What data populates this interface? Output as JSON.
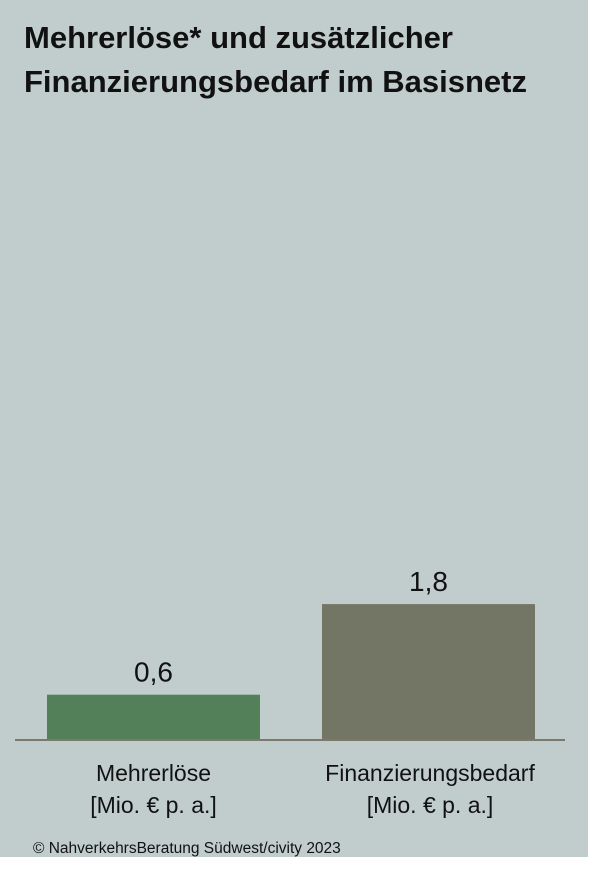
{
  "chart_data": {
    "type": "bar",
    "title": "Mehrerlöse* und zusätzlicher Finanzierungsbedarf im Basisnetz",
    "categories": [
      {
        "line1": "Mehrerlöse",
        "line2": "[Mio. € p. a.]"
      },
      {
        "line1": "Finanzierungsbedarf",
        "line2": "[Mio. € p. a.]"
      }
    ],
    "values": [
      0.6,
      1.8
    ],
    "data_labels": [
      "0,6",
      "1,8"
    ],
    "bar_colors": [
      "#538059",
      "#737565"
    ],
    "ylim": [
      0,
      4.0
    ],
    "grid": false,
    "legend": "none"
  },
  "footer": {
    "copyright": "© NahverkehrsBeratung Südwest/civity 2023"
  },
  "colors": {
    "background": "#c1cdcd",
    "axis": "#7a7a6c",
    "text": "#111111"
  }
}
